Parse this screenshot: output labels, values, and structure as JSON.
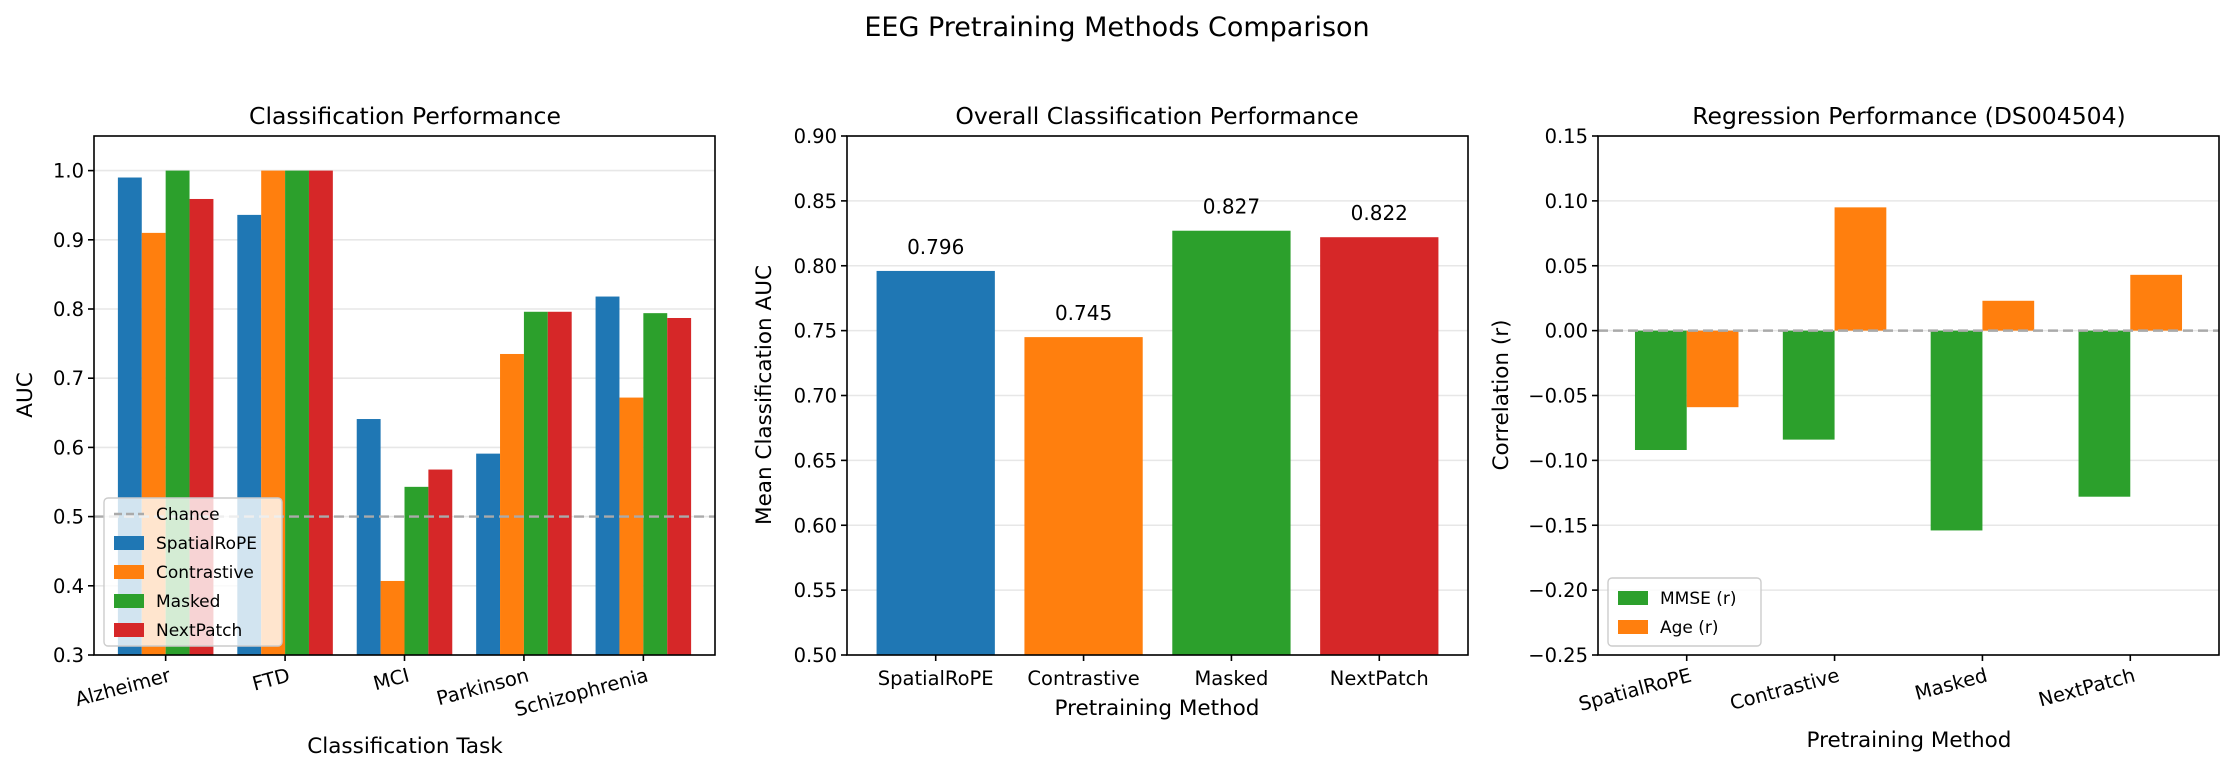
{
  "suptitle": "EEG Pretraining Methods Comparison",
  "colors": {
    "SpatialRoPE": "#1f77b4",
    "Contrastive": "#ff7f0e",
    "Masked": "#2ca02c",
    "NextPatch": "#d62728",
    "chance": "#aaaaaa"
  },
  "chart_data": [
    {
      "type": "bar",
      "title": "Classification Performance",
      "xlabel": "Classification Task",
      "ylabel": "AUC",
      "categories": [
        "Alzheimer",
        "FTD",
        "MCI",
        "Parkinson",
        "Schizophrenia"
      ],
      "series": [
        {
          "name": "SpatialRoPE",
          "values": [
            0.99,
            0.936,
            0.641,
            0.591,
            0.818
          ]
        },
        {
          "name": "Contrastive",
          "values": [
            0.91,
            1.0,
            0.407,
            0.735,
            0.672
          ]
        },
        {
          "name": "Masked",
          "values": [
            1.0,
            1.0,
            0.543,
            0.796,
            0.794
          ]
        },
        {
          "name": "NextPatch",
          "values": [
            0.959,
            1.0,
            0.568,
            0.796,
            0.787
          ]
        }
      ],
      "reference_line": {
        "label": "Chance",
        "value": 0.5
      },
      "ylim": [
        0.3,
        1.05
      ],
      "yticks": [
        "0.3",
        "0.4",
        "0.5",
        "0.6",
        "0.7",
        "0.8",
        "0.9",
        "1.0"
      ],
      "legend": [
        "Chance",
        "SpatialRoPE",
        "Contrastive",
        "Masked",
        "NextPatch"
      ],
      "legend_position": "lower-left",
      "grid": "y"
    },
    {
      "type": "bar",
      "title": "Overall Classification Performance",
      "xlabel": "Pretraining Method",
      "ylabel": "Mean Classification AUC",
      "categories": [
        "SpatialRoPE",
        "Contrastive",
        "Masked",
        "NextPatch"
      ],
      "values": [
        0.796,
        0.745,
        0.827,
        0.822
      ],
      "data_labels": [
        "0.796",
        "0.745",
        "0.827",
        "0.822"
      ],
      "ylim": [
        0.5,
        0.9
      ],
      "yticks": [
        "0.50",
        "0.55",
        "0.60",
        "0.65",
        "0.70",
        "0.75",
        "0.80",
        "0.85",
        "0.90"
      ],
      "grid": "y"
    },
    {
      "type": "bar",
      "title": "Regression Performance (DS004504)",
      "xlabel": "Pretraining Method",
      "ylabel": "Correlation (r)",
      "categories": [
        "SpatialRoPE",
        "Contrastive",
        "Masked",
        "NextPatch"
      ],
      "series": [
        {
          "name": "MMSE (r)",
          "values": [
            -0.092,
            -0.084,
            -0.154,
            -0.128
          ]
        },
        {
          "name": "Age (r)",
          "values": [
            -0.059,
            0.095,
            0.023,
            0.043
          ]
        }
      ],
      "reference_line": {
        "value": 0.0
      },
      "ylim": [
        -0.25,
        0.15
      ],
      "yticks": [
        "−0.25",
        "−0.20",
        "−0.15",
        "−0.10",
        "−0.05",
        "0.00",
        "0.05",
        "0.10",
        "0.15"
      ],
      "legend": [
        "MMSE (r)",
        "Age (r)"
      ],
      "legend_position": "lower-left",
      "grid": "y"
    }
  ]
}
